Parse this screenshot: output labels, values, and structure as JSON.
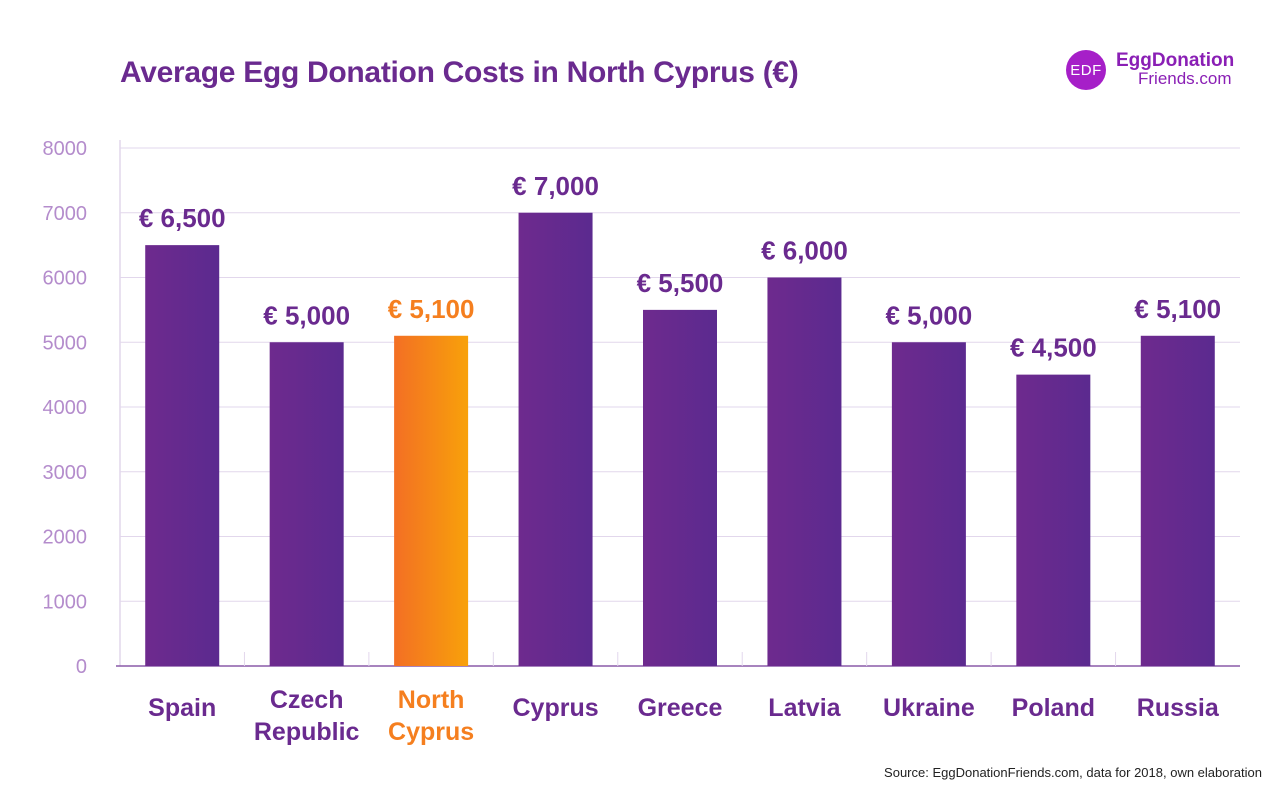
{
  "header": {
    "title": "Average Egg Donation Costs in North Cyprus (€)",
    "logo_badge": "EDF",
    "logo_line1": "EggDonation",
    "logo_line2": "Friends.com"
  },
  "footer": {
    "source": "Source: EggDonationFriends.com, data for 2018, own elaboration"
  },
  "chart_data": {
    "type": "bar",
    "title": "Average Egg Donation Costs in North Cyprus (€)",
    "xlabel": "",
    "ylabel": "",
    "ylim": [
      0,
      8000
    ],
    "yticks": [
      0,
      1000,
      2000,
      3000,
      4000,
      5000,
      6000,
      7000,
      8000
    ],
    "grid": true,
    "categories": [
      [
        "Spain"
      ],
      [
        "Czech",
        "Republic"
      ],
      [
        "North",
        "Cyprus"
      ],
      [
        "Cyprus"
      ],
      [
        "Greece"
      ],
      [
        "Latvia"
      ],
      [
        "Ukraine"
      ],
      [
        "Poland"
      ],
      [
        "Russia"
      ]
    ],
    "values": [
      6500,
      5000,
      5100,
      7000,
      5500,
      6000,
      5000,
      4500,
      5100
    ],
    "value_labels": [
      "€ 6,500",
      "€ 5,000",
      "€ 5,100",
      "€ 7,000",
      "€ 5,500",
      "€ 6,000",
      "€ 5,000",
      "€ 4,500",
      "€ 5,100"
    ],
    "highlight_index": 2,
    "colors": {
      "bar": "#6a2a8f",
      "highlight": "#f57f1f",
      "label": "#6a2a8f",
      "highlight_label": "#f57f1f",
      "tick": "#b48ccc",
      "grid": "#e2d7ec"
    }
  }
}
